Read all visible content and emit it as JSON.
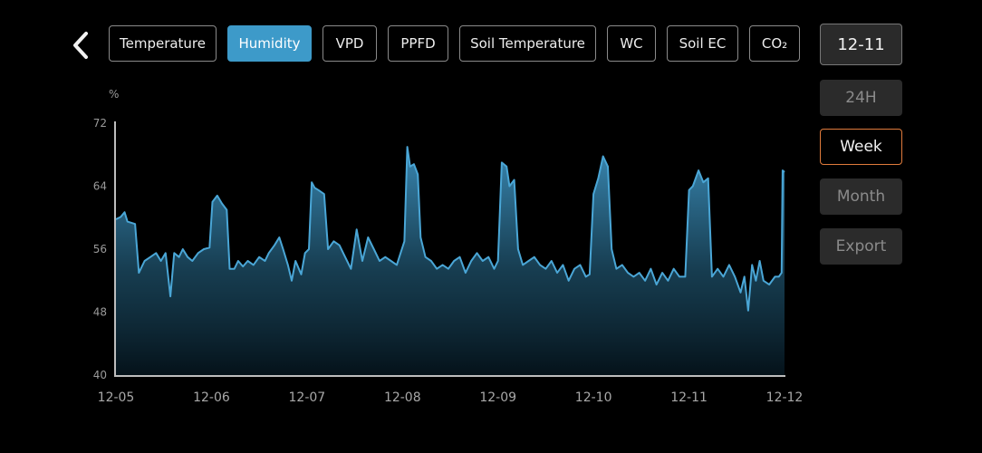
{
  "header": {
    "back_icon": "chevron-left-icon",
    "tabs": [
      {
        "label": "Temperature",
        "active": false
      },
      {
        "label": "Humidity",
        "active": true
      },
      {
        "label": "VPD",
        "active": false
      },
      {
        "label": "PPFD",
        "active": false
      },
      {
        "label": "Soil Temperature",
        "active": false
      },
      {
        "label": "WC",
        "active": false
      },
      {
        "label": "Soil EC",
        "active": false
      },
      {
        "label": "CO₂",
        "active": false
      }
    ]
  },
  "sidebar": {
    "date": "12-11",
    "ranges": [
      {
        "label": "24H",
        "selected": false
      },
      {
        "label": "Week",
        "selected": true
      },
      {
        "label": "Month",
        "selected": false
      }
    ],
    "export_label": "Export"
  },
  "colors": {
    "accent": "#3d9ac9",
    "line": "#4aa6d6",
    "selected_border": "#e07b3c"
  },
  "chart_data": {
    "type": "area",
    "title": "",
    "xlabel": "",
    "ylabel": "%",
    "ylim": [
      40,
      72
    ],
    "yticks": [
      "72",
      "64",
      "56",
      "48",
      "40"
    ],
    "xlim": [
      0,
      7
    ],
    "categories": [
      "12-05",
      "12-06",
      "12-07",
      "12-08",
      "12-09",
      "12-10",
      "12-11",
      "12-12"
    ],
    "grid": false,
    "series": [
      {
        "values": [
          [
            0.0,
            59.8
          ],
          [
            0.05,
            60.1
          ],
          [
            0.09,
            60.7
          ],
          [
            0.12,
            59.5
          ],
          [
            0.2,
            59.2
          ],
          [
            0.24,
            53.0
          ],
          [
            0.3,
            54.5
          ],
          [
            0.36,
            55.0
          ],
          [
            0.42,
            55.5
          ],
          [
            0.47,
            54.5
          ],
          [
            0.52,
            55.5
          ],
          [
            0.57,
            50.0
          ],
          [
            0.61,
            55.5
          ],
          [
            0.66,
            55.0
          ],
          [
            0.7,
            56.0
          ],
          [
            0.75,
            55.0
          ],
          [
            0.8,
            54.5
          ],
          [
            0.86,
            55.5
          ],
          [
            0.92,
            56.0
          ],
          [
            0.98,
            56.2
          ],
          [
            1.01,
            62.0
          ],
          [
            1.06,
            62.8
          ],
          [
            1.11,
            61.8
          ],
          [
            1.16,
            61.0
          ],
          [
            1.19,
            53.5
          ],
          [
            1.24,
            53.5
          ],
          [
            1.28,
            54.5
          ],
          [
            1.33,
            53.8
          ],
          [
            1.38,
            54.5
          ],
          [
            1.44,
            54.0
          ],
          [
            1.5,
            55.0
          ],
          [
            1.56,
            54.5
          ],
          [
            1.6,
            55.5
          ],
          [
            1.66,
            56.5
          ],
          [
            1.71,
            57.5
          ],
          [
            1.75,
            56.0
          ],
          [
            1.8,
            54.0
          ],
          [
            1.84,
            52.0
          ],
          [
            1.88,
            54.5
          ],
          [
            1.94,
            52.8
          ],
          [
            1.98,
            55.5
          ],
          [
            2.02,
            56.0
          ],
          [
            2.05,
            64.5
          ],
          [
            2.08,
            63.8
          ],
          [
            2.12,
            63.5
          ],
          [
            2.18,
            63.0
          ],
          [
            2.22,
            56.0
          ],
          [
            2.28,
            57.0
          ],
          [
            2.34,
            56.5
          ],
          [
            2.4,
            55.0
          ],
          [
            2.46,
            53.5
          ],
          [
            2.52,
            58.5
          ],
          [
            2.58,
            54.5
          ],
          [
            2.64,
            57.5
          ],
          [
            2.7,
            56.0
          ],
          [
            2.76,
            54.5
          ],
          [
            2.82,
            55.0
          ],
          [
            2.88,
            54.5
          ],
          [
            2.94,
            54.0
          ],
          [
            2.98,
            55.5
          ],
          [
            3.02,
            57.0
          ],
          [
            3.05,
            69.0
          ],
          [
            3.08,
            66.5
          ],
          [
            3.12,
            66.8
          ],
          [
            3.16,
            65.5
          ],
          [
            3.19,
            57.5
          ],
          [
            3.24,
            55.0
          ],
          [
            3.3,
            54.5
          ],
          [
            3.36,
            53.5
          ],
          [
            3.42,
            54.0
          ],
          [
            3.48,
            53.5
          ],
          [
            3.54,
            54.5
          ],
          [
            3.6,
            55.0
          ],
          [
            3.66,
            53.0
          ],
          [
            3.72,
            54.5
          ],
          [
            3.78,
            55.5
          ],
          [
            3.84,
            54.5
          ],
          [
            3.9,
            55.0
          ],
          [
            3.96,
            53.5
          ],
          [
            4.0,
            54.5
          ],
          [
            4.04,
            67.0
          ],
          [
            4.09,
            66.5
          ],
          [
            4.12,
            64.0
          ],
          [
            4.17,
            64.8
          ],
          [
            4.21,
            56.0
          ],
          [
            4.26,
            54.0
          ],
          [
            4.32,
            54.5
          ],
          [
            4.38,
            55.0
          ],
          [
            4.44,
            54.0
          ],
          [
            4.5,
            53.5
          ],
          [
            4.56,
            54.5
          ],
          [
            4.62,
            53.0
          ],
          [
            4.68,
            54.0
          ],
          [
            4.74,
            52.0
          ],
          [
            4.8,
            53.5
          ],
          [
            4.86,
            54.0
          ],
          [
            4.92,
            52.5
          ],
          [
            4.96,
            52.8
          ],
          [
            5.0,
            63.0
          ],
          [
            5.05,
            65.0
          ],
          [
            5.1,
            67.8
          ],
          [
            5.15,
            66.5
          ],
          [
            5.19,
            56.0
          ],
          [
            5.24,
            53.5
          ],
          [
            5.3,
            54.0
          ],
          [
            5.36,
            53.0
          ],
          [
            5.42,
            52.5
          ],
          [
            5.48,
            53.0
          ],
          [
            5.54,
            52.0
          ],
          [
            5.6,
            53.5
          ],
          [
            5.66,
            51.5
          ],
          [
            5.72,
            53.0
          ],
          [
            5.78,
            52.0
          ],
          [
            5.84,
            53.5
          ],
          [
            5.9,
            52.5
          ],
          [
            5.96,
            52.5
          ],
          [
            6.0,
            63.5
          ],
          [
            6.04,
            64.0
          ],
          [
            6.1,
            66.0
          ],
          [
            6.15,
            64.5
          ],
          [
            6.2,
            65.0
          ],
          [
            6.24,
            52.5
          ],
          [
            6.3,
            53.5
          ],
          [
            6.36,
            52.5
          ],
          [
            6.42,
            54.0
          ],
          [
            6.48,
            52.5
          ],
          [
            6.54,
            50.5
          ],
          [
            6.58,
            52.5
          ],
          [
            6.62,
            48.2
          ],
          [
            6.66,
            54.0
          ],
          [
            6.7,
            52.0
          ],
          [
            6.74,
            54.5
          ],
          [
            6.78,
            52.0
          ],
          [
            6.84,
            51.5
          ],
          [
            6.9,
            52.5
          ],
          [
            6.94,
            52.5
          ],
          [
            6.97,
            53.0
          ],
          [
            6.98,
            66.0
          ],
          [
            7.0,
            65.8
          ]
        ]
      }
    ]
  }
}
